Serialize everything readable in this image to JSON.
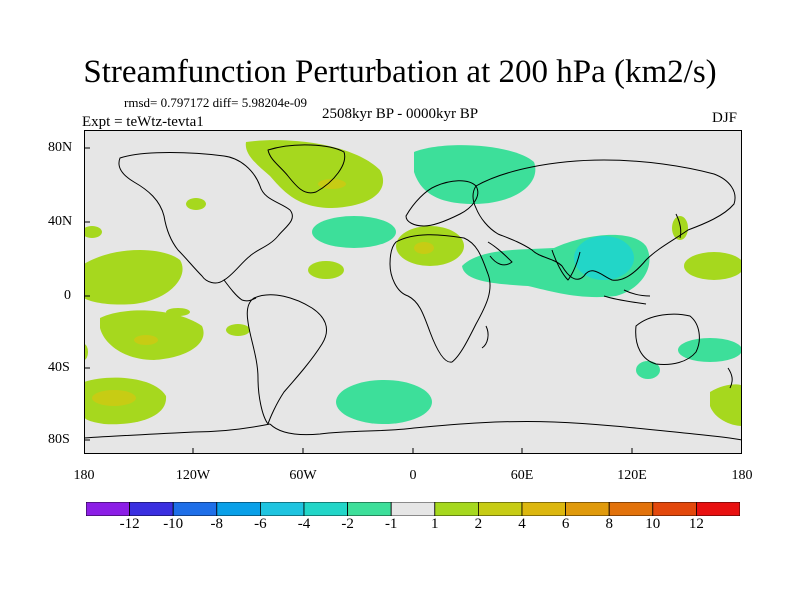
{
  "title": "Streamfunction Perturbation at 200 hPa (km2/s)",
  "stats": "rmsd= 0.797172 diff= 5.98204e-09",
  "period": "2508kyr BP - 0000kyr BP",
  "experiment": "Expt = teWtz-tevta1",
  "season": "DJF",
  "axes": {
    "y_ticks": [
      "80N",
      "40N",
      "0",
      "40S",
      "80S"
    ],
    "x_ticks": [
      "180",
      "120W",
      "60W",
      "0",
      "60E",
      "120E",
      "180"
    ]
  },
  "colorbar": {
    "labels": [
      "-12",
      "-10",
      "-8",
      "-6",
      "-4",
      "-2",
      "-1",
      "1",
      "2",
      "4",
      "6",
      "8",
      "10",
      "12"
    ],
    "colors": [
      "#8c1ee6",
      "#3a2fe0",
      "#1f6fe8",
      "#0aa0e8",
      "#1fc4e0",
      "#22d6c8",
      "#3ddf9a",
      "#e6e6e6",
      "#a6d81e",
      "#c7cc14",
      "#dcb70f",
      "#e09a0c",
      "#e2720b",
      "#e3480c",
      "#e81010"
    ]
  }
}
